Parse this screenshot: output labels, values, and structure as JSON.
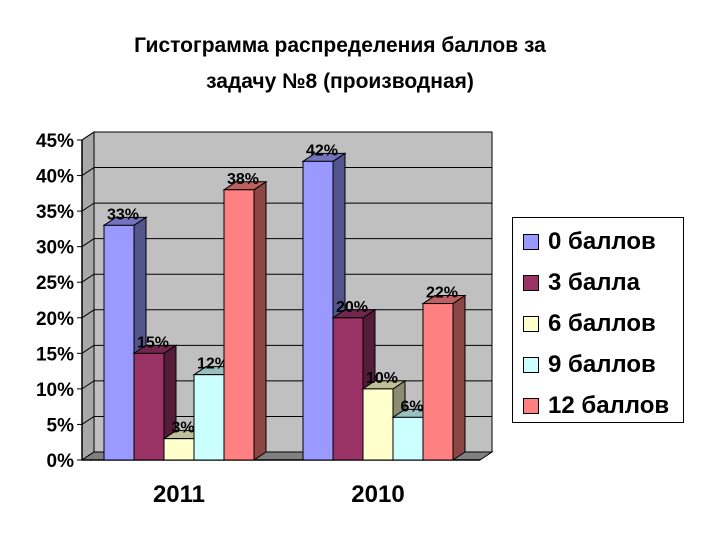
{
  "chart_data": {
    "type": "bar",
    "title_lines": [
      "Гистограмма распределения баллов за",
      "задачу №8 (производная)"
    ],
    "categories": [
      "2011",
      "2010"
    ],
    "series": [
      {
        "name": "0 баллов",
        "values": [
          33,
          42
        ],
        "labels": [
          "33%",
          "42%"
        ],
        "color": "#9999ff"
      },
      {
        "name": "3 балла",
        "values": [
          15,
          20
        ],
        "labels": [
          "15%",
          "20%"
        ],
        "color": "#993366"
      },
      {
        "name": "6 баллов",
        "values": [
          3,
          10
        ],
        "labels": [
          "3%",
          "10%"
        ],
        "color": "#ffffcc"
      },
      {
        "name": "9 баллов",
        "values": [
          12,
          6
        ],
        "labels": [
          "12%",
          "6%"
        ],
        "color": "#ccffff"
      },
      {
        "name": "12 баллов",
        "values": [
          38,
          22
        ],
        "labels": [
          "38%",
          "22%"
        ],
        "color": "#ff8080"
      }
    ],
    "y_ticks": [
      "0%",
      "5%",
      "10%",
      "15%",
      "20%",
      "25%",
      "30%",
      "35%",
      "40%",
      "45%"
    ],
    "ylim": [
      0,
      45
    ],
    "grid": true,
    "legend_position": "right",
    "wall_color": "#c0c0c0"
  }
}
